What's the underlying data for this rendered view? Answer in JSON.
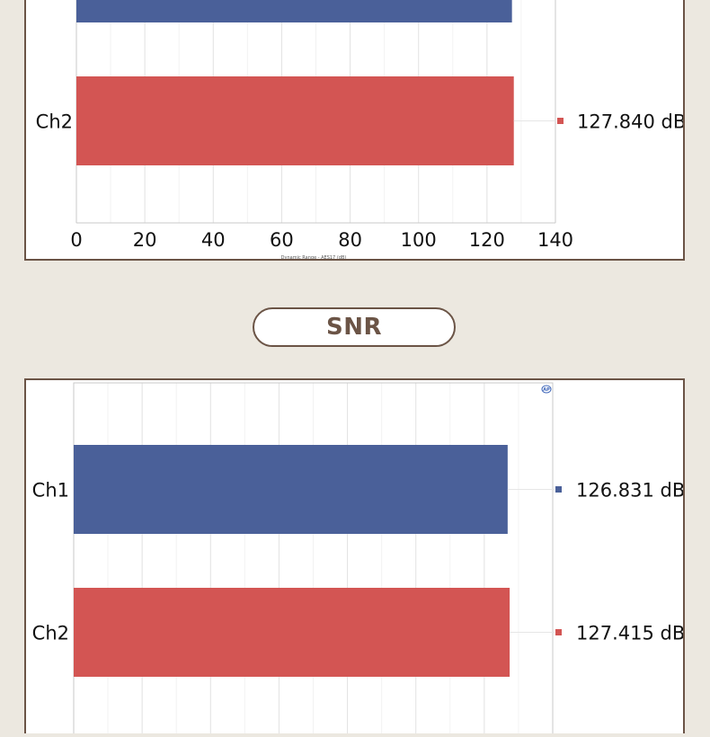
{
  "section_label": "SNR",
  "colors": {
    "ch1": "#4a6099",
    "ch2": "#d35553",
    "frame": "#6b5446",
    "background": "#ece8e0"
  },
  "chart_data": [
    {
      "type": "bar",
      "orientation": "horizontal",
      "categories": [
        "Ch2"
      ],
      "series": [
        {
          "values": [
            127.84
          ]
        }
      ],
      "value_labels": [
        "127.840 dB"
      ],
      "xlabel": "Dynamic Range - AES17 (dB)",
      "xticks": [
        "0",
        "20",
        "40",
        "60",
        "80",
        "100",
        "120",
        "140"
      ],
      "xlim": [
        0,
        140
      ],
      "partial_top_bar_value": 127.3,
      "grid": true
    },
    {
      "type": "bar",
      "orientation": "horizontal",
      "categories": [
        "Ch1",
        "Ch2"
      ],
      "series": [
        {
          "values": [
            126.831,
            127.415
          ]
        }
      ],
      "value_labels": [
        "126.831 dB",
        "127.415 dB"
      ],
      "xlim": [
        0,
        140
      ],
      "logo": "ap-logo",
      "grid": true
    }
  ]
}
